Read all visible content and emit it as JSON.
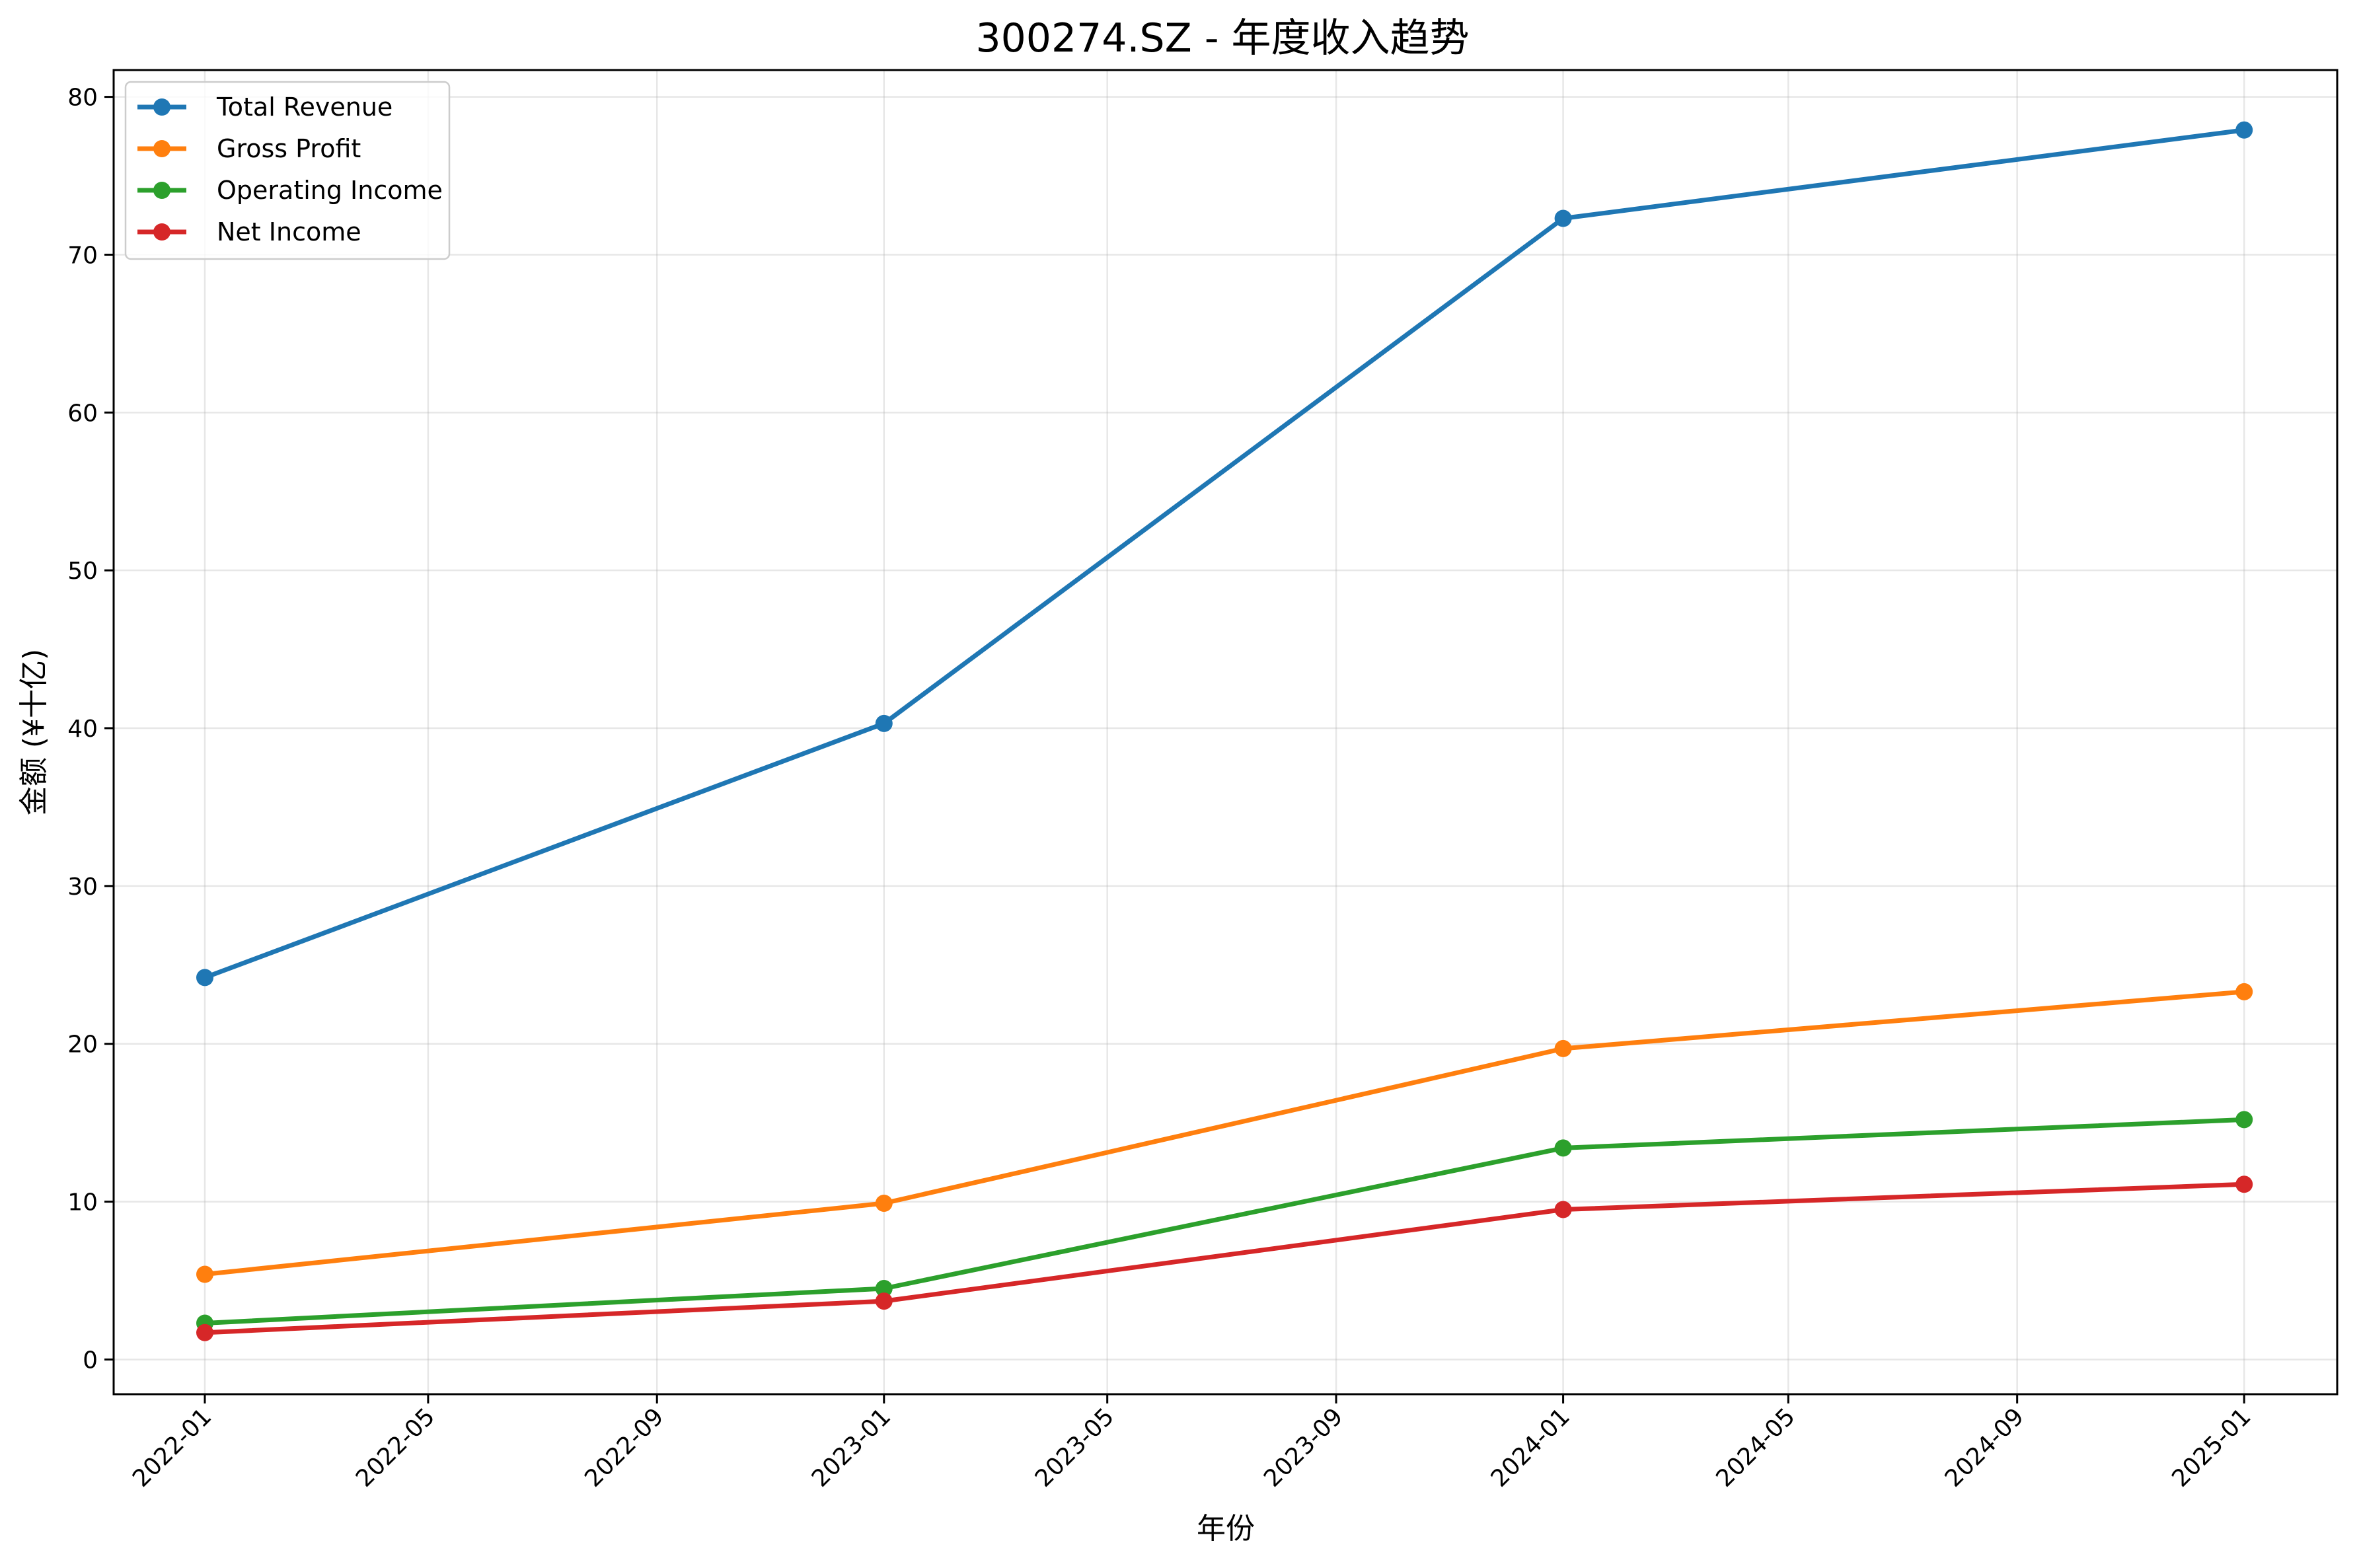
{
  "chart_data": {
    "type": "line",
    "title": "300274.SZ - 年度收入趋势",
    "xlabel": "年份",
    "ylabel": "金额 (¥十亿)",
    "x": [
      "2022-01-01",
      "2023-01-01",
      "2024-01-01",
      "2025-01-01"
    ],
    "x_ticks": [
      "2022-01",
      "2022-05",
      "2022-09",
      "2023-01",
      "2023-05",
      "2023-09",
      "2024-01",
      "2024-05",
      "2024-09",
      "2025-01"
    ],
    "y_ticks": [
      0,
      10,
      20,
      30,
      40,
      50,
      60,
      70,
      80
    ],
    "xlim": [
      "2021-11-13",
      "2025-02-20"
    ],
    "ylim": [
      -2.2,
      81.7
    ],
    "grid": true,
    "legend_position": "top-left",
    "marker": "circle",
    "series": [
      {
        "name": "Total Revenue",
        "color": "#1f77b4",
        "values": [
          24.2,
          40.3,
          72.3,
          77.9
        ]
      },
      {
        "name": "Gross Profit",
        "color": "#ff7f0e",
        "values": [
          5.4,
          9.9,
          19.7,
          23.3
        ]
      },
      {
        "name": "Operating Income",
        "color": "#2ca02c",
        "values": [
          2.3,
          4.5,
          13.4,
          15.2
        ]
      },
      {
        "name": "Net Income",
        "color": "#d62728",
        "values": [
          1.7,
          3.7,
          9.5,
          11.1
        ]
      }
    ]
  }
}
